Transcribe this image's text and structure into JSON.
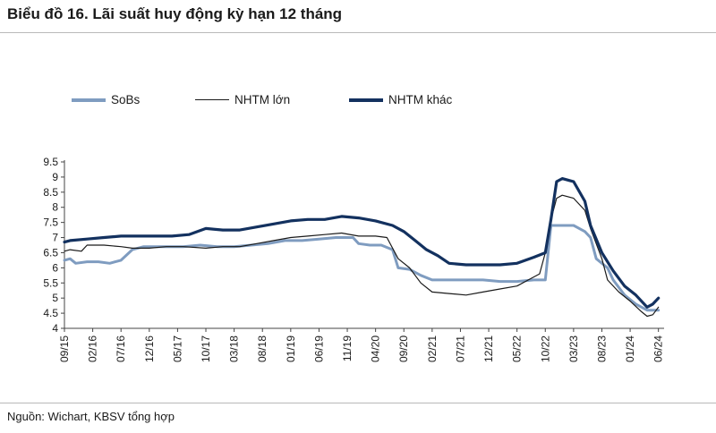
{
  "page": {
    "title": "Biểu đồ 16. Lãi suất huy động kỳ hạn 12 tháng",
    "source": "Nguồn: Wichart, KBSV tổng hợp"
  },
  "chart_data": {
    "type": "line",
    "title": "Biểu đồ 16. Lãi suất huy động kỳ hạn 12 tháng",
    "xlabel": "",
    "ylabel": "",
    "x_tick_labels": [
      "09/15",
      "02/16",
      "07/16",
      "12/16",
      "05/17",
      "10/17",
      "03/18",
      "08/18",
      "01/19",
      "06/19",
      "11/19",
      "04/20",
      "09/20",
      "02/21",
      "07/21",
      "12/21",
      "05/22",
      "10/22",
      "03/23",
      "08/23",
      "01/24",
      "06/24"
    ],
    "x_range": [
      "2015-09",
      "2024-07"
    ],
    "y_ticks": [
      "4",
      "4.5",
      "5",
      "5.5",
      "6",
      "6.5",
      "7",
      "7.5",
      "8",
      "8.5",
      "9",
      "9.5"
    ],
    "ylim": [
      4,
      9.5
    ],
    "grid": false,
    "legend_position": "top",
    "series": [
      {
        "name": "SoBs",
        "color": "#7f9cc0",
        "points": [
          [
            "2015-09",
            6.25
          ],
          [
            "2015-10",
            6.3
          ],
          [
            "2015-11",
            6.15
          ],
          [
            "2016-01",
            6.2
          ],
          [
            "2016-03",
            6.2
          ],
          [
            "2016-05",
            6.15
          ],
          [
            "2016-07",
            6.25
          ],
          [
            "2016-09",
            6.6
          ],
          [
            "2016-11",
            6.7
          ],
          [
            "2017-01",
            6.7
          ],
          [
            "2017-03",
            6.7
          ],
          [
            "2017-06",
            6.7
          ],
          [
            "2017-09",
            6.75
          ],
          [
            "2017-12",
            6.7
          ],
          [
            "2018-03",
            6.7
          ],
          [
            "2018-06",
            6.75
          ],
          [
            "2018-09",
            6.8
          ],
          [
            "2018-12",
            6.9
          ],
          [
            "2019-03",
            6.9
          ],
          [
            "2019-06",
            6.95
          ],
          [
            "2019-09",
            7.0
          ],
          [
            "2019-12",
            7.0
          ],
          [
            "2020-01",
            6.8
          ],
          [
            "2020-03",
            6.75
          ],
          [
            "2020-05",
            6.75
          ],
          [
            "2020-07",
            6.6
          ],
          [
            "2020-08",
            6.0
          ],
          [
            "2020-10",
            5.95
          ],
          [
            "2020-12",
            5.75
          ],
          [
            "2021-02",
            5.6
          ],
          [
            "2021-05",
            5.6
          ],
          [
            "2021-08",
            5.6
          ],
          [
            "2021-11",
            5.6
          ],
          [
            "2022-02",
            5.55
          ],
          [
            "2022-05",
            5.55
          ],
          [
            "2022-08",
            5.6
          ],
          [
            "2022-10",
            5.6
          ],
          [
            "2022-11",
            7.4
          ],
          [
            "2023-01",
            7.4
          ],
          [
            "2023-03",
            7.4
          ],
          [
            "2023-05",
            7.2
          ],
          [
            "2023-06",
            7.0
          ],
          [
            "2023-07",
            6.3
          ],
          [
            "2023-09",
            6.0
          ],
          [
            "2023-10",
            5.6
          ],
          [
            "2023-12",
            5.1
          ],
          [
            "2024-02",
            4.8
          ],
          [
            "2024-04",
            4.6
          ],
          [
            "2024-05",
            4.6
          ],
          [
            "2024-06",
            4.6
          ]
        ]
      },
      {
        "name": "NHTM lớn",
        "color": "#1a1a1a",
        "points": [
          [
            "2015-09",
            6.55
          ],
          [
            "2015-10",
            6.6
          ],
          [
            "2015-12",
            6.55
          ],
          [
            "2016-01",
            6.75
          ],
          [
            "2016-04",
            6.75
          ],
          [
            "2016-07",
            6.7
          ],
          [
            "2016-09",
            6.65
          ],
          [
            "2016-12",
            6.65
          ],
          [
            "2017-03",
            6.7
          ],
          [
            "2017-06",
            6.7
          ],
          [
            "2017-10",
            6.65
          ],
          [
            "2018-01",
            6.7
          ],
          [
            "2018-04",
            6.7
          ],
          [
            "2018-07",
            6.8
          ],
          [
            "2018-10",
            6.9
          ],
          [
            "2019-01",
            7.0
          ],
          [
            "2019-04",
            7.05
          ],
          [
            "2019-07",
            7.1
          ],
          [
            "2019-10",
            7.15
          ],
          [
            "2020-01",
            7.05
          ],
          [
            "2020-04",
            7.05
          ],
          [
            "2020-06",
            7.0
          ],
          [
            "2020-08",
            6.3
          ],
          [
            "2020-10",
            6.0
          ],
          [
            "2020-12",
            5.5
          ],
          [
            "2021-02",
            5.2
          ],
          [
            "2021-05",
            5.15
          ],
          [
            "2021-08",
            5.1
          ],
          [
            "2021-11",
            5.2
          ],
          [
            "2022-02",
            5.3
          ],
          [
            "2022-05",
            5.4
          ],
          [
            "2022-07",
            5.6
          ],
          [
            "2022-09",
            5.8
          ],
          [
            "2022-10",
            6.5
          ],
          [
            "2022-11",
            7.6
          ],
          [
            "2022-12",
            8.3
          ],
          [
            "2023-01",
            8.4
          ],
          [
            "2023-03",
            8.3
          ],
          [
            "2023-05",
            7.9
          ],
          [
            "2023-06",
            7.3
          ],
          [
            "2023-08",
            6.3
          ],
          [
            "2023-09",
            5.6
          ],
          [
            "2023-11",
            5.2
          ],
          [
            "2024-01",
            4.9
          ],
          [
            "2024-03",
            4.55
          ],
          [
            "2024-04",
            4.4
          ],
          [
            "2024-05",
            4.45
          ],
          [
            "2024-06",
            4.7
          ]
        ]
      },
      {
        "name": "NHTM khác",
        "color": "#13315f",
        "points": [
          [
            "2015-09",
            6.85
          ],
          [
            "2015-10",
            6.9
          ],
          [
            "2016-01",
            6.95
          ],
          [
            "2016-04",
            7.0
          ],
          [
            "2016-07",
            7.05
          ],
          [
            "2016-10",
            7.05
          ],
          [
            "2017-01",
            7.05
          ],
          [
            "2017-04",
            7.05
          ],
          [
            "2017-07",
            7.1
          ],
          [
            "2017-10",
            7.3
          ],
          [
            "2018-01",
            7.25
          ],
          [
            "2018-04",
            7.25
          ],
          [
            "2018-07",
            7.35
          ],
          [
            "2018-10",
            7.45
          ],
          [
            "2019-01",
            7.55
          ],
          [
            "2019-04",
            7.6
          ],
          [
            "2019-07",
            7.6
          ],
          [
            "2019-10",
            7.7
          ],
          [
            "2020-01",
            7.65
          ],
          [
            "2020-04",
            7.55
          ],
          [
            "2020-07",
            7.4
          ],
          [
            "2020-09",
            7.2
          ],
          [
            "2020-11",
            6.9
          ],
          [
            "2021-01",
            6.6
          ],
          [
            "2021-03",
            6.4
          ],
          [
            "2021-05",
            6.15
          ],
          [
            "2021-08",
            6.1
          ],
          [
            "2021-11",
            6.1
          ],
          [
            "2022-02",
            6.1
          ],
          [
            "2022-05",
            6.15
          ],
          [
            "2022-08",
            6.35
          ],
          [
            "2022-10",
            6.5
          ],
          [
            "2022-11",
            7.6
          ],
          [
            "2022-12",
            8.85
          ],
          [
            "2023-01",
            8.95
          ],
          [
            "2023-03",
            8.85
          ],
          [
            "2023-05",
            8.2
          ],
          [
            "2023-06",
            7.4
          ],
          [
            "2023-08",
            6.5
          ],
          [
            "2023-10",
            5.9
          ],
          [
            "2023-12",
            5.4
          ],
          [
            "2024-02",
            5.1
          ],
          [
            "2024-04",
            4.7
          ],
          [
            "2024-05",
            4.8
          ],
          [
            "2024-06",
            5.0
          ]
        ]
      }
    ]
  }
}
